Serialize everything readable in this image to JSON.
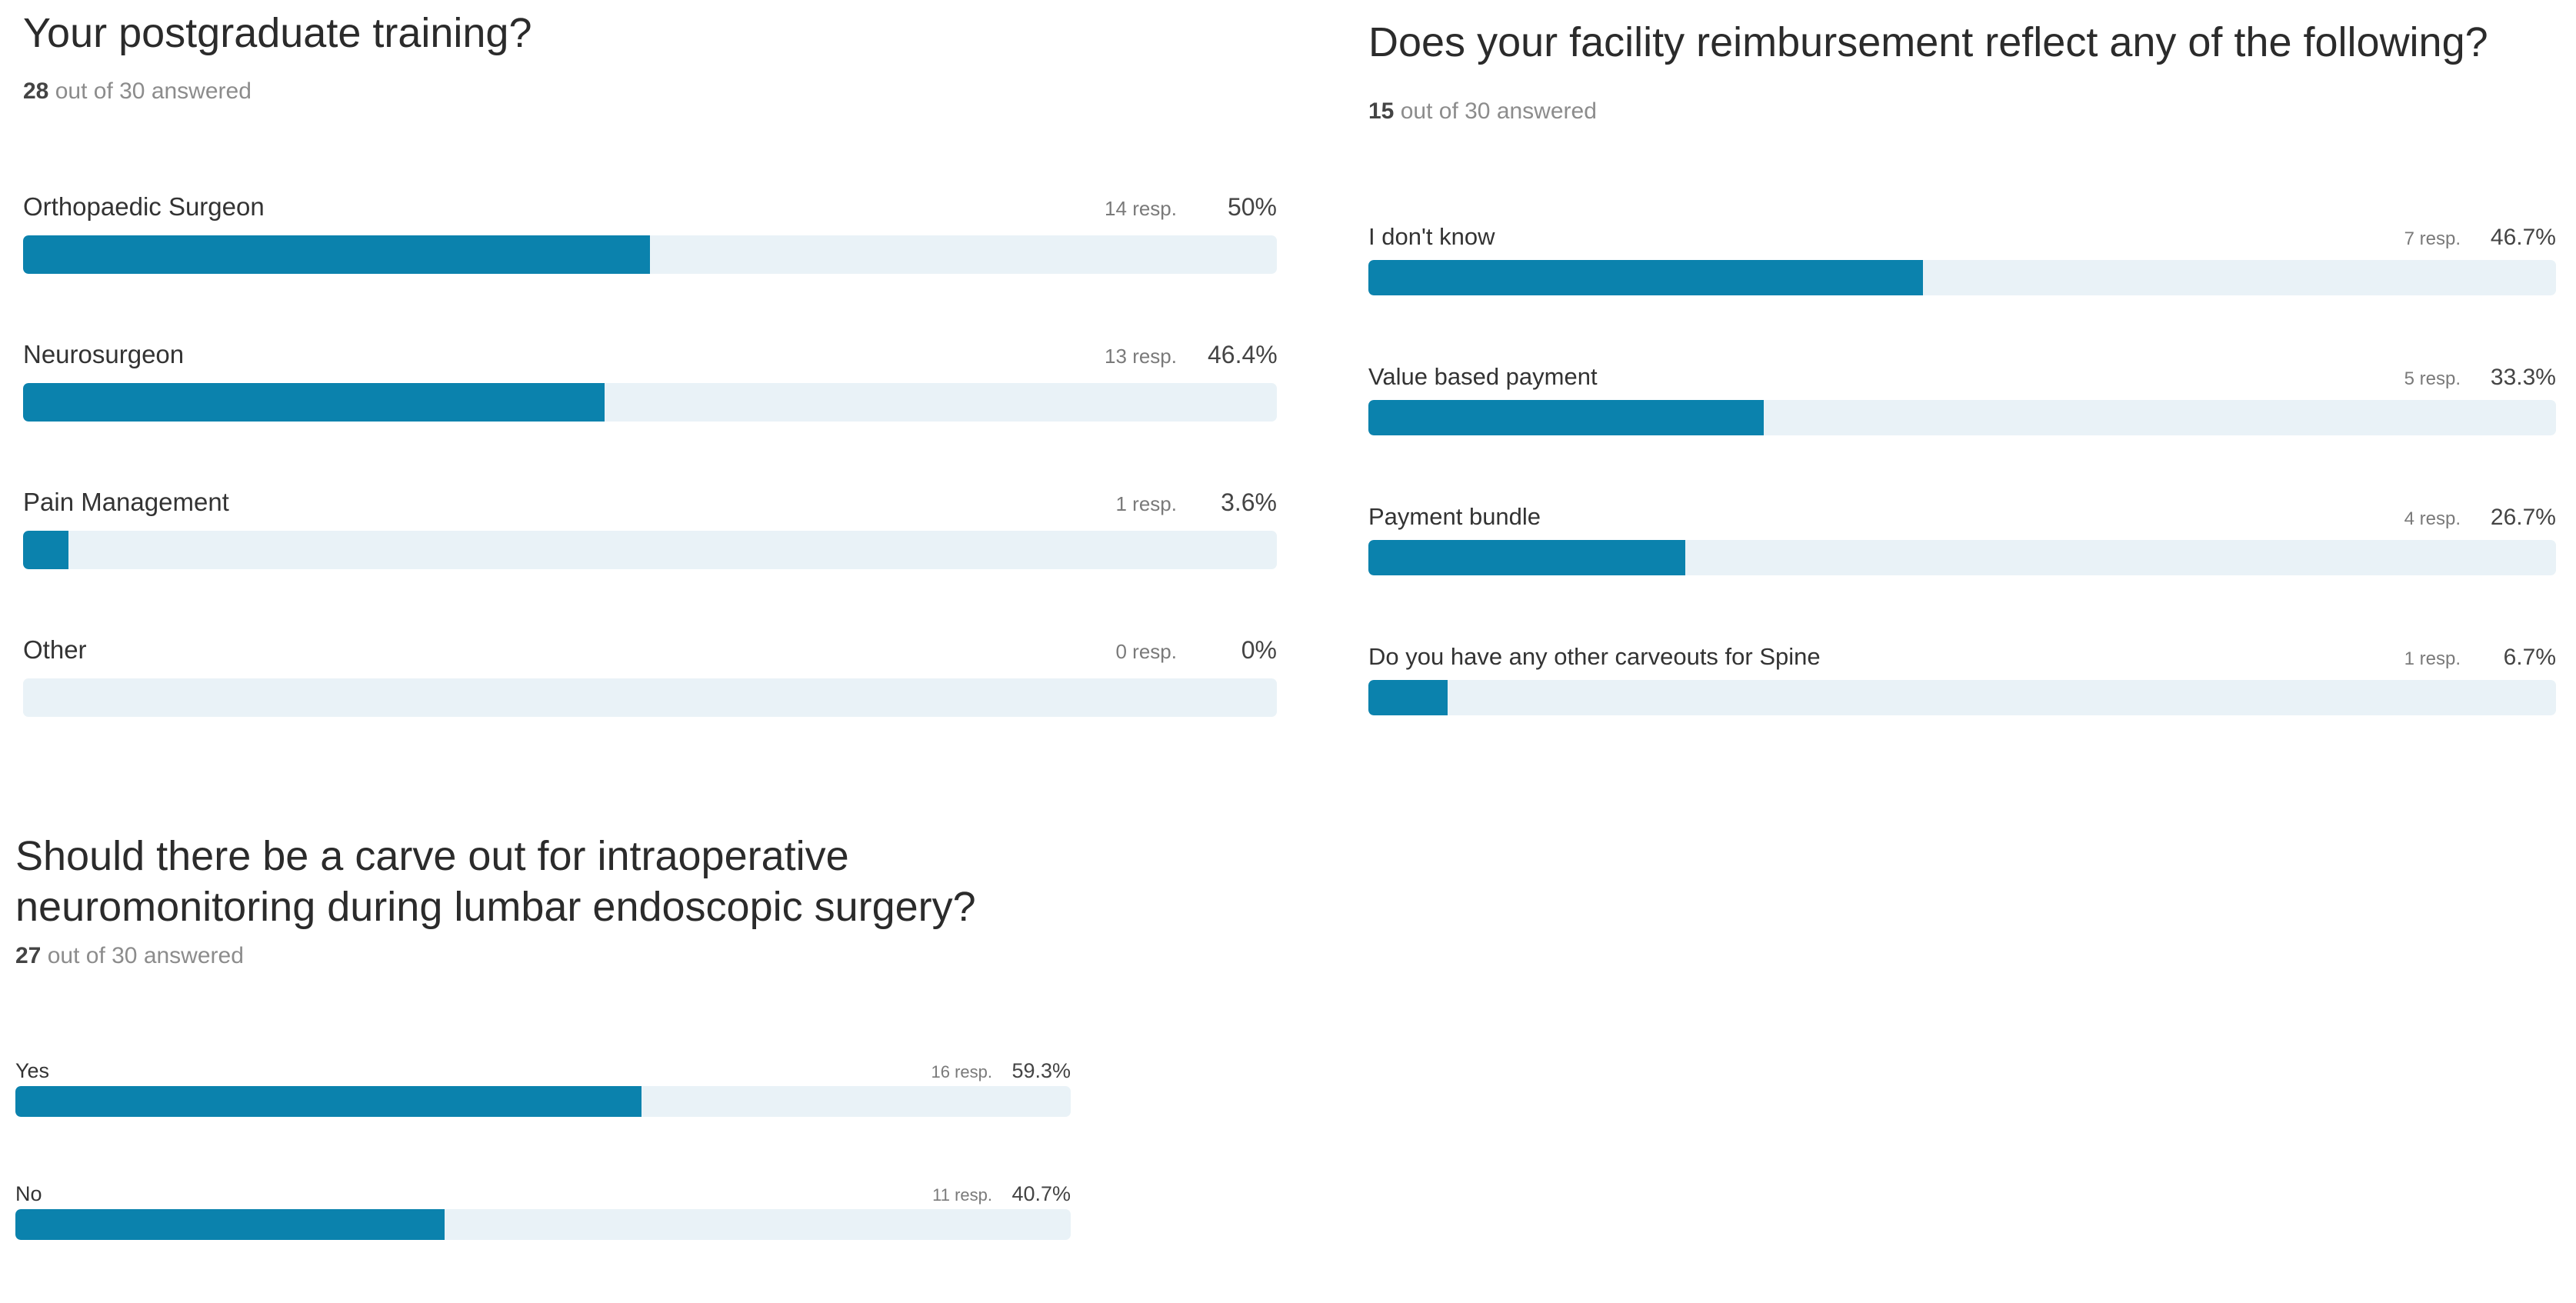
{
  "colors": {
    "bar_fill": "#0b82ad",
    "bar_track": "#e9f2f7",
    "title": "#2b2b2b",
    "muted": "#8c8c8c"
  },
  "chart_data": [
    {
      "type": "bar",
      "orientation": "horizontal",
      "title": "Your postgraduate training?",
      "answered": {
        "count": "28",
        "suffix": "out of 30 answered"
      },
      "xlim": [
        0,
        100
      ],
      "items": [
        {
          "label": "Orthopaedic Surgeon",
          "resp": "14 resp.",
          "pct_label": "50%",
          "value": 50
        },
        {
          "label": "Neurosurgeon",
          "resp": "13 resp.",
          "pct_label": "46.4%",
          "value": 46.4
        },
        {
          "label": "Pain Management",
          "resp": "1 resp.",
          "pct_label": "3.6%",
          "value": 3.6
        },
        {
          "label": "Other",
          "resp": "0 resp.",
          "pct_label": "0%",
          "value": 0
        }
      ]
    },
    {
      "type": "bar",
      "orientation": "horizontal",
      "title": "Does your facility reimbursement reflect any of the following?",
      "answered": {
        "count": "15",
        "suffix": "out of 30 answered"
      },
      "xlim": [
        0,
        100
      ],
      "items": [
        {
          "label": "I don't know",
          "resp": "7 resp.",
          "pct_label": "46.7%",
          "value": 46.7
        },
        {
          "label": "Value based payment",
          "resp": "5 resp.",
          "pct_label": "33.3%",
          "value": 33.3
        },
        {
          "label": "Payment bundle",
          "resp": "4 resp.",
          "pct_label": "26.7%",
          "value": 26.7
        },
        {
          "label": "Do you have any other carveouts for Spine",
          "resp": "1 resp.",
          "pct_label": "6.7%",
          "value": 6.7
        }
      ]
    },
    {
      "type": "bar",
      "orientation": "horizontal",
      "title": "Should there be a carve out for intraoperative neuromonitoring during lumbar endoscopic surgery?",
      "answered": {
        "count": "27",
        "suffix": "out of 30 answered"
      },
      "xlim": [
        0,
        100
      ],
      "items": [
        {
          "label": "Yes",
          "resp": "16 resp.",
          "pct_label": "59.3%",
          "value": 59.3
        },
        {
          "label": "No",
          "resp": "11 resp.",
          "pct_label": "40.7%",
          "value": 40.7
        }
      ]
    }
  ]
}
